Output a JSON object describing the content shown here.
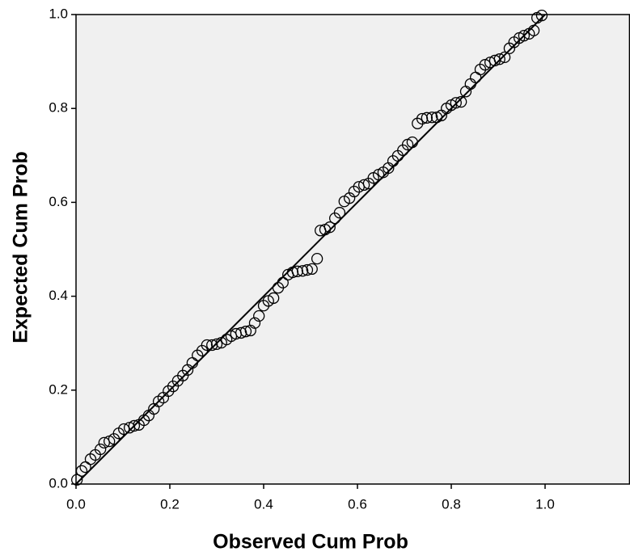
{
  "chart_data": {
    "type": "scatter",
    "x_label": "Observed Cum Prob",
    "y_label": "Expected Cum Prob",
    "xlim": [
      0,
      1.18
    ],
    "ylim": [
      0,
      1
    ],
    "xticks": [
      {
        "value": 0,
        "label": "0.0"
      },
      0.2,
      0.4,
      0.6,
      0.8,
      {
        "value": 1,
        "label": "1.0"
      }
    ],
    "yticks": [
      {
        "value": 0,
        "label": "0.0"
      },
      0.2,
      0.4,
      0.6,
      0.8,
      {
        "value": 1,
        "label": "1.0"
      }
    ],
    "background": "#f0f0f0",
    "reference_line": {
      "x": [
        0,
        1
      ],
      "y": [
        0,
        1
      ],
      "color": "#000000"
    },
    "series": [
      {
        "color": "#000000",
        "x": [
          0.002,
          0.012,
          0.02,
          0.031,
          0.041,
          0.052,
          0.06,
          0.071,
          0.081,
          0.091,
          0.102,
          0.114,
          0.124,
          0.134,
          0.145,
          0.155,
          0.166,
          0.176,
          0.186,
          0.197,
          0.207,
          0.217,
          0.228,
          0.238,
          0.248,
          0.259,
          0.269,
          0.279,
          0.29,
          0.3,
          0.31,
          0.321,
          0.331,
          0.341,
          0.352,
          0.362,
          0.372,
          0.381,
          0.39,
          0.4,
          0.41,
          0.421,
          0.431,
          0.441,
          0.452,
          0.462,
          0.472,
          0.483,
          0.493,
          0.503,
          0.514,
          0.521,
          0.531,
          0.541,
          0.552,
          0.562,
          0.572,
          0.583,
          0.593,
          0.603,
          0.614,
          0.624,
          0.634,
          0.645,
          0.655,
          0.666,
          0.676,
          0.686,
          0.697,
          0.707,
          0.717,
          0.728,
          0.738,
          0.748,
          0.759,
          0.769,
          0.779,
          0.79,
          0.8,
          0.81,
          0.821,
          0.831,
          0.841,
          0.852,
          0.862,
          0.872,
          0.883,
          0.893,
          0.903,
          0.914,
          0.924,
          0.934,
          0.945,
          0.955,
          0.966,
          0.976,
          0.983,
          0.993
        ],
        "values": [
          0.009,
          0.028,
          0.036,
          0.053,
          0.062,
          0.074,
          0.088,
          0.091,
          0.096,
          0.108,
          0.117,
          0.12,
          0.124,
          0.126,
          0.136,
          0.146,
          0.16,
          0.176,
          0.184,
          0.198,
          0.208,
          0.22,
          0.231,
          0.243,
          0.258,
          0.274,
          0.284,
          0.296,
          0.296,
          0.298,
          0.301,
          0.308,
          0.315,
          0.32,
          0.322,
          0.325,
          0.327,
          0.343,
          0.358,
          0.38,
          0.39,
          0.396,
          0.418,
          0.429,
          0.446,
          0.451,
          0.453,
          0.454,
          0.456,
          0.458,
          0.48,
          0.54,
          0.542,
          0.547,
          0.566,
          0.578,
          0.602,
          0.609,
          0.623,
          0.633,
          0.637,
          0.64,
          0.652,
          0.659,
          0.664,
          0.673,
          0.688,
          0.699,
          0.711,
          0.723,
          0.728,
          0.768,
          0.778,
          0.78,
          0.781,
          0.781,
          0.785,
          0.8,
          0.807,
          0.812,
          0.814,
          0.836,
          0.852,
          0.866,
          0.883,
          0.893,
          0.898,
          0.902,
          0.905,
          0.909,
          0.928,
          0.941,
          0.95,
          0.955,
          0.959,
          0.966,
          0.993,
          0.998
        ]
      }
    ]
  }
}
